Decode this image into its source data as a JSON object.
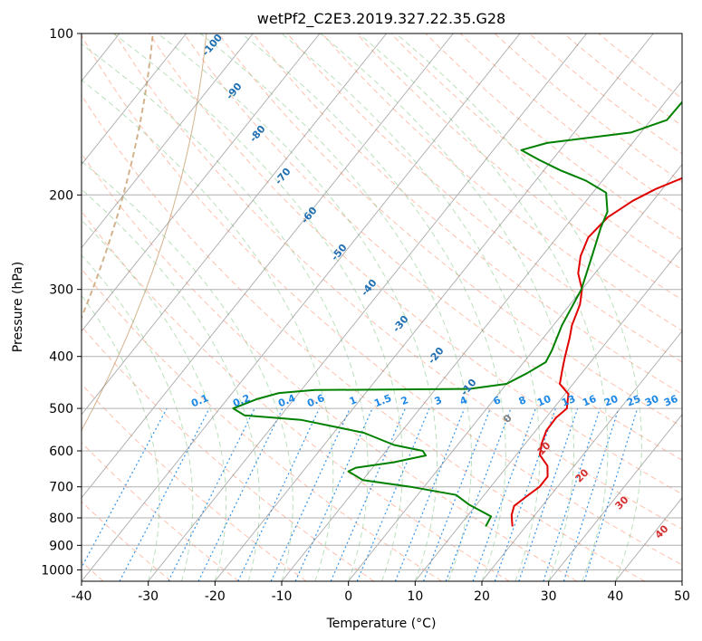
{
  "chart_data": {
    "type": "line",
    "subtype": "skew-t log-p",
    "title": "wetPf2_C2E3.2019.327.22.35.G28",
    "xlabel": "Temperature (°C)",
    "ylabel": "Pressure (hPa)",
    "xlim": [
      -40,
      50
    ],
    "ylim": [
      1050,
      100
    ],
    "y_scale": "log",
    "grid": true,
    "x_ticks": [
      -40,
      -30,
      -20,
      -10,
      0,
      10,
      20,
      30,
      40,
      50
    ],
    "y_ticks": [
      100,
      200,
      300,
      400,
      500,
      600,
      700,
      800,
      900,
      1000
    ],
    "series": [
      {
        "role": "temperature",
        "color": "#e00000",
        "points": [
          [
            18,
            830
          ],
          [
            16.5,
            790
          ],
          [
            15.8,
            760
          ],
          [
            16.5,
            730
          ],
          [
            17.3,
            700
          ],
          [
            17.3,
            670
          ],
          [
            16,
            640
          ],
          [
            13.5,
            610
          ],
          [
            12.4,
            580
          ],
          [
            11.6,
            550
          ],
          [
            11.5,
            520
          ],
          [
            12.0,
            500
          ],
          [
            10.5,
            470
          ],
          [
            8.0,
            450
          ],
          [
            6.5,
            420
          ],
          [
            5.5,
            400
          ],
          [
            4.0,
            370
          ],
          [
            2.8,
            350
          ],
          [
            1.5,
            320
          ],
          [
            0.0,
            300
          ],
          [
            -2.5,
            280
          ],
          [
            -4.2,
            260
          ],
          [
            -5.3,
            240
          ],
          [
            -4.8,
            220
          ],
          [
            -3.0,
            205
          ],
          [
            -1.0,
            195
          ],
          [
            2.0,
            185
          ],
          [
            4.2,
            175
          ],
          [
            6.0,
            165
          ],
          [
            8.0,
            155
          ],
          [
            8.6,
            145
          ],
          [
            8.5,
            135
          ],
          [
            9.6,
            125
          ],
          [
            10.3,
            115
          ],
          [
            10.0,
            107
          ],
          [
            9.6,
            100
          ]
        ]
      },
      {
        "role": "dewpoint",
        "color": "#008000",
        "points": [
          [
            14,
            830
          ],
          [
            13.6,
            795
          ],
          [
            8.8,
            755
          ],
          [
            5.8,
            725
          ],
          [
            -2,
            700
          ],
          [
            -10,
            680
          ],
          [
            -13.2,
            655
          ],
          [
            -12.5,
            645
          ],
          [
            -7.5,
            630
          ],
          [
            -3.5,
            612
          ],
          [
            -4.5,
            600
          ],
          [
            -9.5,
            585
          ],
          [
            -15.5,
            555
          ],
          [
            -26.5,
            525
          ],
          [
            -35.5,
            515
          ],
          [
            -38,
            500
          ],
          [
            -35.5,
            480
          ],
          [
            -33,
            468
          ],
          [
            -28,
            462
          ],
          [
            -5,
            460
          ],
          [
            0,
            450
          ],
          [
            1.8,
            430
          ],
          [
            3.3,
            410
          ],
          [
            2.8,
            390
          ],
          [
            1.3,
            350
          ],
          [
            -0.1,
            300
          ],
          [
            -2.5,
            260
          ],
          [
            -4.6,
            230
          ],
          [
            -5.5,
            215
          ],
          [
            -8.0,
            198
          ],
          [
            -12.5,
            188
          ],
          [
            -17.5,
            180
          ],
          [
            -22,
            172
          ],
          [
            -25.8,
            165
          ],
          [
            -22.8,
            160
          ],
          [
            -11.5,
            153
          ],
          [
            -7.6,
            145
          ],
          [
            -7.4,
            130
          ],
          [
            -7.4,
            120
          ],
          [
            -6.0,
            114
          ],
          [
            -3.4,
            108
          ],
          [
            -1.4,
            102
          ],
          [
            -0.7,
            100
          ]
        ]
      }
    ],
    "dry_adiabat_labels": [
      "-100",
      "-90",
      "-80",
      "-70",
      "-60",
      "-50",
      "-40",
      "-30",
      "-20",
      "-10"
    ],
    "moist_adiabat_labels": [
      "0",
      "10",
      "20",
      "30",
      "40"
    ],
    "mixing_ratio_labels": [
      "0.1",
      "0.2",
      "0.4",
      "0.6",
      "1",
      "1.5",
      "2",
      "3",
      "4",
      "6",
      "8",
      "10",
      "13",
      "16",
      "20",
      "25",
      "30",
      "36"
    ]
  },
  "colors": {
    "temperature": "#e00000",
    "dewpoint": "#008000",
    "dry_adiabats": "#ff8c69",
    "moist_adiabats": "#66bb6a",
    "mixing_ratio": "#1e88e5",
    "isotherms": "#808080",
    "isobars": "#b0b0b0",
    "dry_adiabat_label": "#1f6fb2",
    "moist_adiabat_label": "#d32f2f",
    "brown_curves": "#c8a070"
  }
}
